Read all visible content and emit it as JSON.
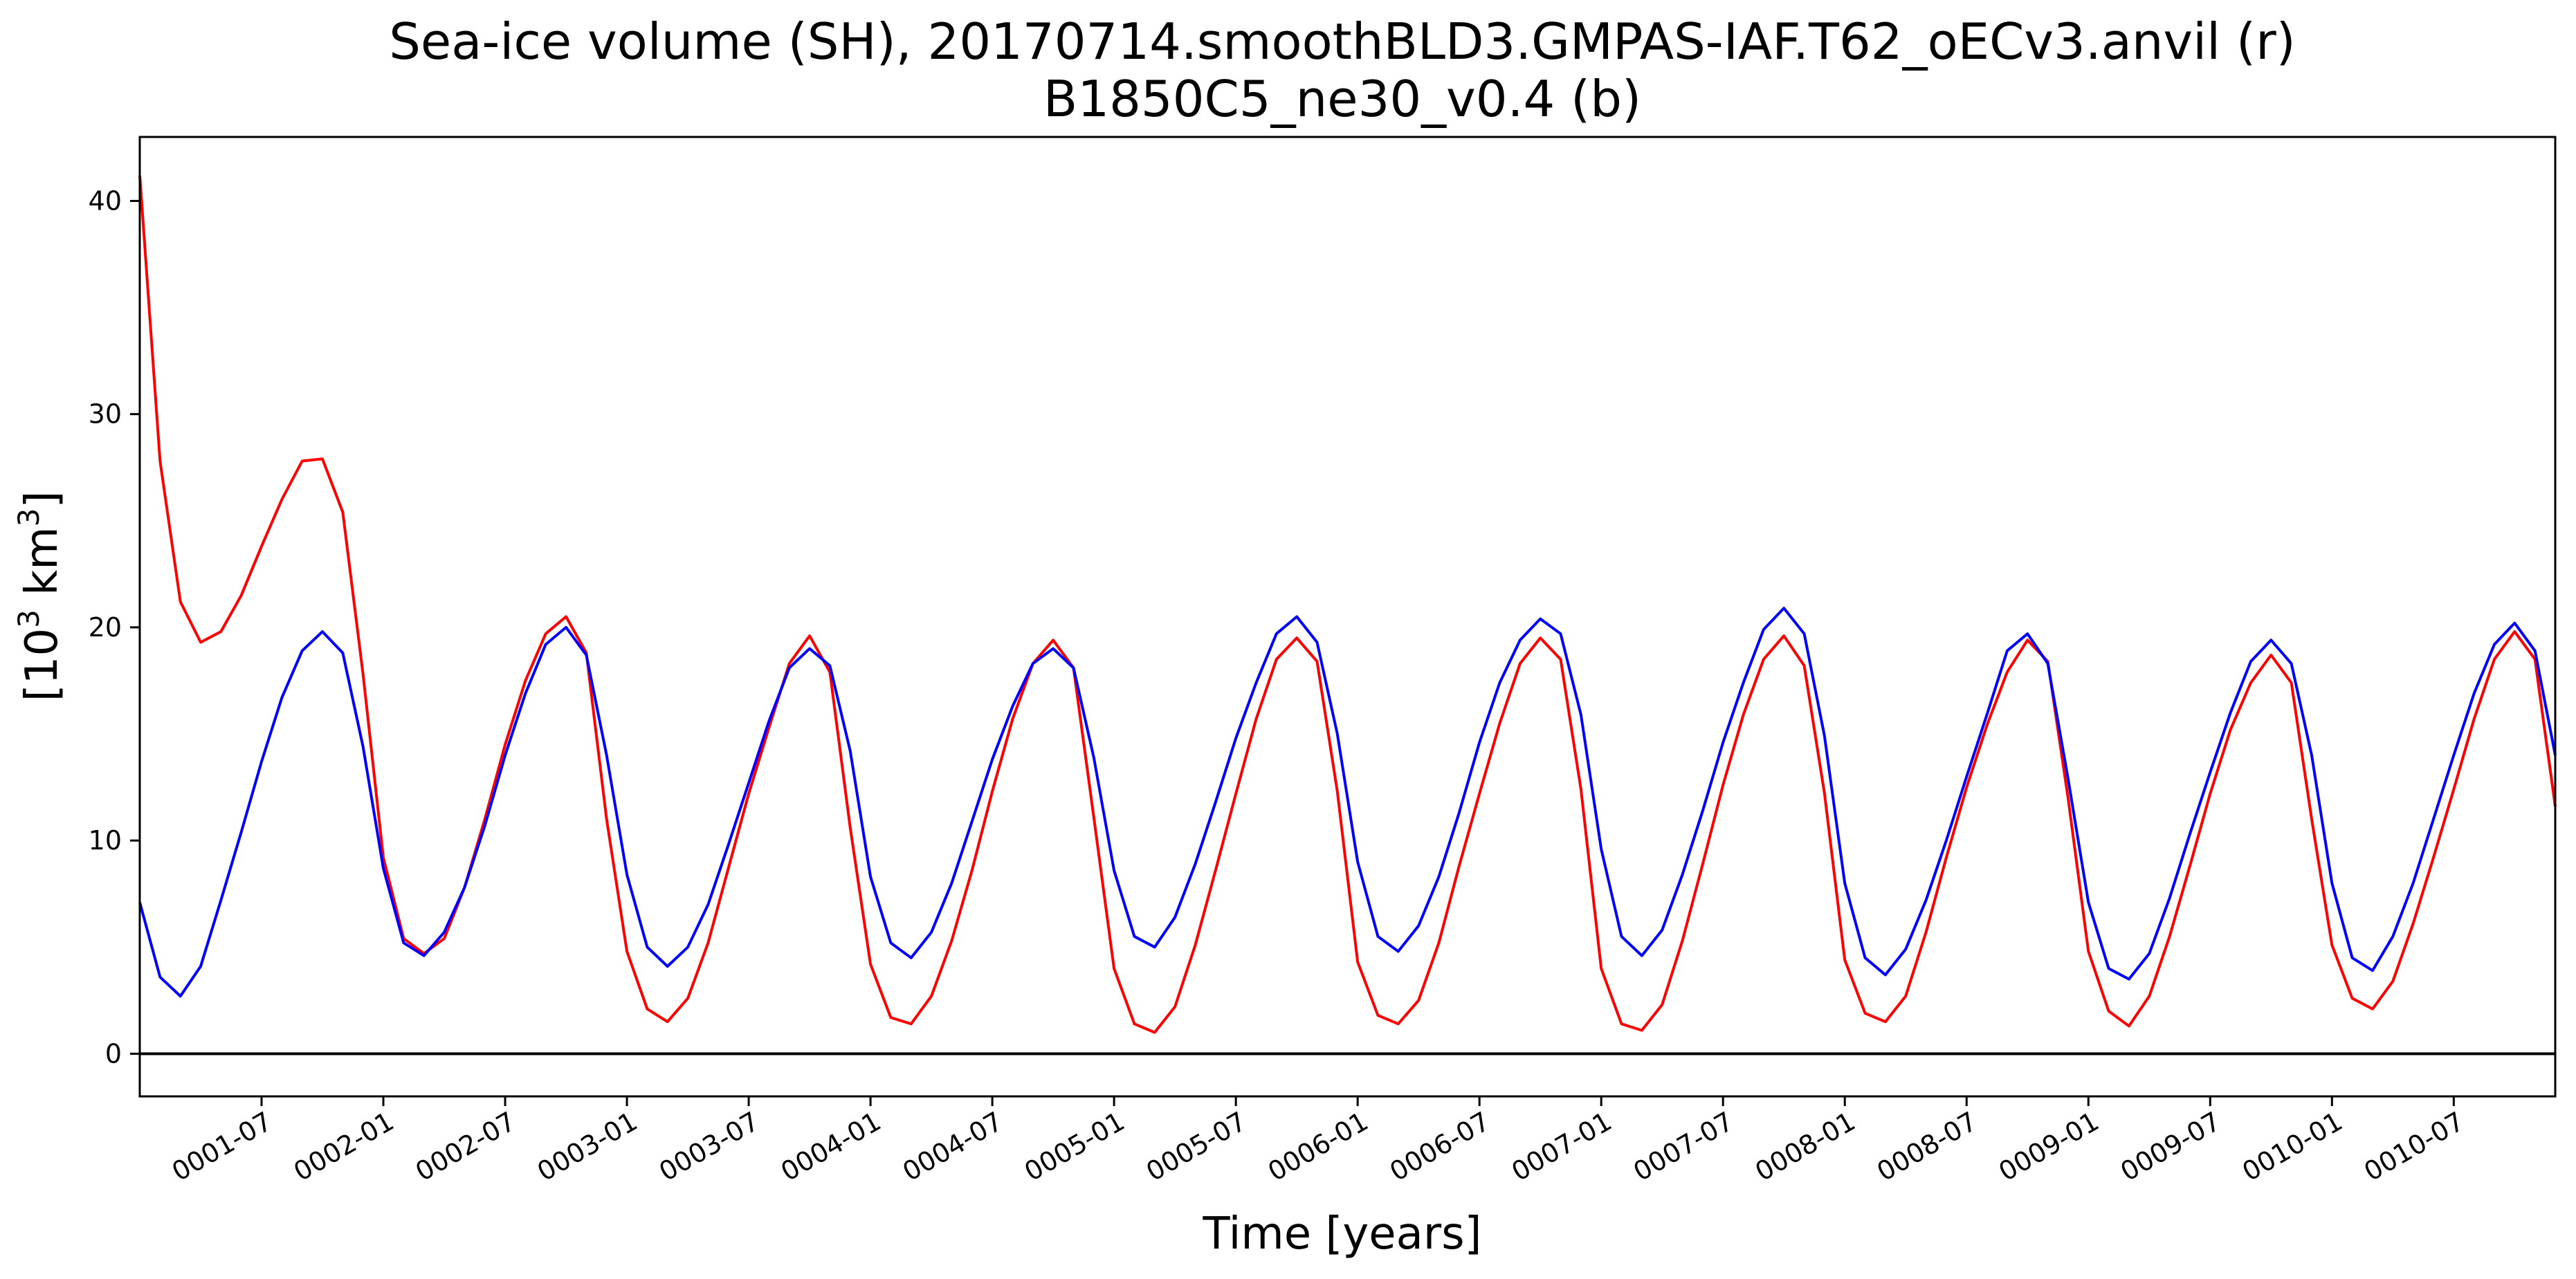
{
  "chart_data": {
    "type": "line",
    "title_line1": "Sea-ice volume (SH), 20170714.smoothBLD3.GMPAS-IAF.T62_oECv3.anvil (r)",
    "title_line2": "B1850C5_ne30_v0.4 (b)",
    "xlabel": "Time [years]",
    "ylabel_base": "[10",
    "ylabel_sup1": "3",
    "ylabel_mid": " km",
    "ylabel_sup2": "3",
    "ylabel_end": "]",
    "ylim": [
      -2,
      43
    ],
    "yticks": [
      0,
      10,
      20,
      30,
      40
    ],
    "x_start": "0001-01",
    "xtick_labels": [
      "0001-07",
      "0002-01",
      "0002-07",
      "0003-01",
      "0003-07",
      "0004-01",
      "0004-07",
      "0005-01",
      "0005-07",
      "0006-01",
      "0006-07",
      "0007-01",
      "0007-07",
      "0008-01",
      "0008-07",
      "0009-01",
      "0009-07",
      "0010-01",
      "0010-07"
    ],
    "xtick_months": [
      6,
      12,
      18,
      24,
      30,
      36,
      42,
      48,
      54,
      60,
      66,
      72,
      78,
      84,
      90,
      96,
      102,
      108,
      114
    ],
    "xlim_months": [
      0,
      119
    ],
    "zero_line": 0,
    "grid": false,
    "series": [
      {
        "color": "#ff0000",
        "values": [
          41.2,
          27.8,
          21.2,
          19.3,
          19.8,
          21.5,
          23.8,
          26.0,
          27.8,
          27.9,
          25.4,
          17.8,
          9.2,
          5.4,
          4.7,
          5.4,
          7.8,
          11.0,
          14.5,
          17.5,
          19.7,
          20.5,
          18.8,
          11.0,
          4.8,
          2.1,
          1.5,
          2.6,
          5.2,
          8.7,
          12.2,
          15.3,
          18.3,
          19.6,
          17.9,
          10.6,
          4.2,
          1.7,
          1.4,
          2.7,
          5.3,
          8.6,
          12.3,
          15.7,
          18.3,
          19.4,
          18.1,
          11.1,
          4.0,
          1.4,
          1.0,
          2.2,
          5.1,
          8.6,
          12.2,
          15.7,
          18.5,
          19.5,
          18.4,
          12.3,
          4.3,
          1.8,
          1.4,
          2.5,
          5.2,
          8.8,
          12.2,
          15.5,
          18.3,
          19.5,
          18.5,
          12.4,
          4.0,
          1.4,
          1.1,
          2.3,
          5.3,
          8.9,
          12.6,
          15.9,
          18.5,
          19.6,
          18.2,
          12.2,
          4.4,
          1.9,
          1.5,
          2.7,
          5.7,
          9.2,
          12.5,
          15.4,
          17.9,
          19.4,
          18.4,
          12.0,
          4.8,
          2.0,
          1.3,
          2.7,
          5.5,
          8.8,
          12.2,
          15.2,
          17.4,
          18.7,
          17.4,
          11.0,
          5.1,
          2.6,
          2.1,
          3.4,
          6.1,
          9.2,
          12.4,
          15.7,
          18.5,
          19.8,
          18.5,
          11.6
        ]
      },
      {
        "color": "#0000ff",
        "values": [
          7.1,
          3.6,
          2.7,
          4.1,
          7.2,
          10.4,
          13.7,
          16.7,
          18.9,
          19.8,
          18.8,
          14.4,
          8.7,
          5.2,
          4.6,
          5.7,
          7.8,
          10.7,
          14.0,
          16.9,
          19.2,
          20.0,
          18.7,
          14.0,
          8.4,
          5.0,
          4.1,
          5.0,
          7.0,
          9.8,
          12.7,
          15.6,
          18.1,
          19.0,
          18.2,
          14.2,
          8.3,
          5.2,
          4.5,
          5.7,
          8.0,
          10.9,
          13.8,
          16.3,
          18.3,
          19.0,
          18.1,
          13.9,
          8.6,
          5.5,
          5.0,
          6.4,
          8.9,
          11.8,
          14.8,
          17.4,
          19.7,
          20.5,
          19.3,
          15.0,
          9.0,
          5.5,
          4.8,
          6.0,
          8.3,
          11.3,
          14.6,
          17.4,
          19.4,
          20.4,
          19.7,
          15.9,
          9.6,
          5.5,
          4.6,
          5.8,
          8.4,
          11.4,
          14.6,
          17.4,
          19.9,
          20.9,
          19.7,
          14.9,
          8.0,
          4.5,
          3.7,
          4.9,
          7.2,
          10.0,
          13.0,
          15.9,
          18.9,
          19.7,
          18.3,
          12.9,
          7.1,
          4.0,
          3.5,
          4.7,
          7.3,
          10.3,
          13.2,
          16.0,
          18.4,
          19.4,
          18.3,
          14.0,
          8.0,
          4.5,
          3.9,
          5.5,
          8.0,
          11.0,
          14.0,
          16.9,
          19.2,
          20.2,
          18.9,
          14.0
        ]
      }
    ]
  }
}
